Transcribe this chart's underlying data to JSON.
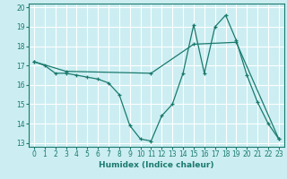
{
  "xlabel": "Humidex (Indice chaleur)",
  "bg_color": "#cceef2",
  "line_color": "#1a7a6e",
  "grid_color": "#ffffff",
  "xlim": [
    -0.5,
    23.5
  ],
  "ylim": [
    12.8,
    20.2
  ],
  "xticks": [
    0,
    1,
    2,
    3,
    4,
    5,
    6,
    7,
    8,
    9,
    10,
    11,
    12,
    13,
    14,
    15,
    16,
    17,
    18,
    19,
    20,
    21,
    22,
    23
  ],
  "yticks": [
    13,
    14,
    15,
    16,
    17,
    18,
    19,
    20
  ],
  "series1": [
    [
      0,
      17.2
    ],
    [
      1,
      17.0
    ],
    [
      2,
      16.6
    ],
    [
      3,
      16.6
    ],
    [
      4,
      16.5
    ],
    [
      5,
      16.4
    ],
    [
      6,
      16.3
    ],
    [
      7,
      16.1
    ],
    [
      8,
      15.5
    ],
    [
      9,
      13.9
    ],
    [
      10,
      13.2
    ],
    [
      11,
      13.1
    ],
    [
      12,
      14.4
    ],
    [
      13,
      15.0
    ],
    [
      14,
      16.6
    ],
    [
      15,
      19.1
    ],
    [
      16,
      16.6
    ],
    [
      17,
      19.0
    ],
    [
      18,
      19.6
    ],
    [
      19,
      18.3
    ],
    [
      20,
      16.5
    ],
    [
      21,
      15.1
    ],
    [
      22,
      14.0
    ],
    [
      23,
      13.2
    ]
  ],
  "series2": [
    [
      0,
      17.2
    ],
    [
      3,
      16.7
    ],
    [
      11,
      16.6
    ],
    [
      15,
      18.1
    ],
    [
      19,
      18.2
    ],
    [
      23,
      13.2
    ]
  ]
}
